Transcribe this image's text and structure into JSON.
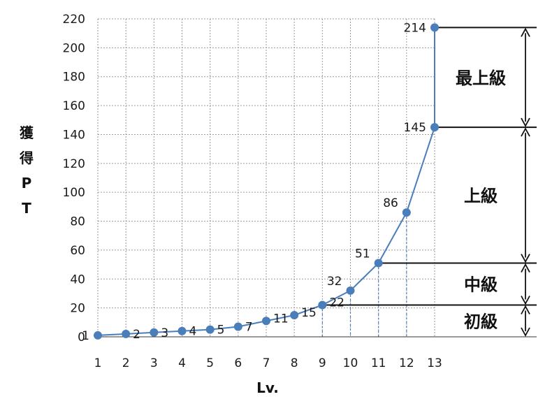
{
  "chart_data": {
    "type": "line",
    "xlabel": "Lv.",
    "ylabel": "獲得PT",
    "ylabel_chars": [
      "獲",
      "得",
      "P",
      "T"
    ],
    "x": [
      1,
      2,
      3,
      4,
      5,
      6,
      7,
      8,
      9,
      10,
      11,
      12,
      13,
      13
    ],
    "values": [
      1,
      2,
      3,
      4,
      5,
      7,
      11,
      15,
      22,
      32,
      51,
      86,
      145,
      214
    ],
    "point_labels": [
      "1",
      "2",
      "3",
      "4",
      "5",
      "7",
      "11",
      "15",
      "22",
      "32",
      "51",
      "86",
      "145",
      "214"
    ],
    "xlim": [
      1,
      13
    ],
    "ylim": [
      0,
      220
    ],
    "x_ticks": [
      "1",
      "2",
      "3",
      "4",
      "5",
      "6",
      "7",
      "8",
      "9",
      "10",
      "11",
      "12",
      "13"
    ],
    "y_ticks": [
      "0",
      "20",
      "40",
      "60",
      "80",
      "100",
      "120",
      "140",
      "160",
      "180",
      "200",
      "220"
    ],
    "grid": true,
    "series_color": "#4a7ebb",
    "tiers": [
      {
        "label": "初級",
        "from": 0,
        "to": 22
      },
      {
        "label": "中級",
        "from": 22,
        "to": 51
      },
      {
        "label": "上級",
        "from": 51,
        "to": 145
      },
      {
        "label": "最上級",
        "from": 145,
        "to": 214
      }
    ]
  }
}
